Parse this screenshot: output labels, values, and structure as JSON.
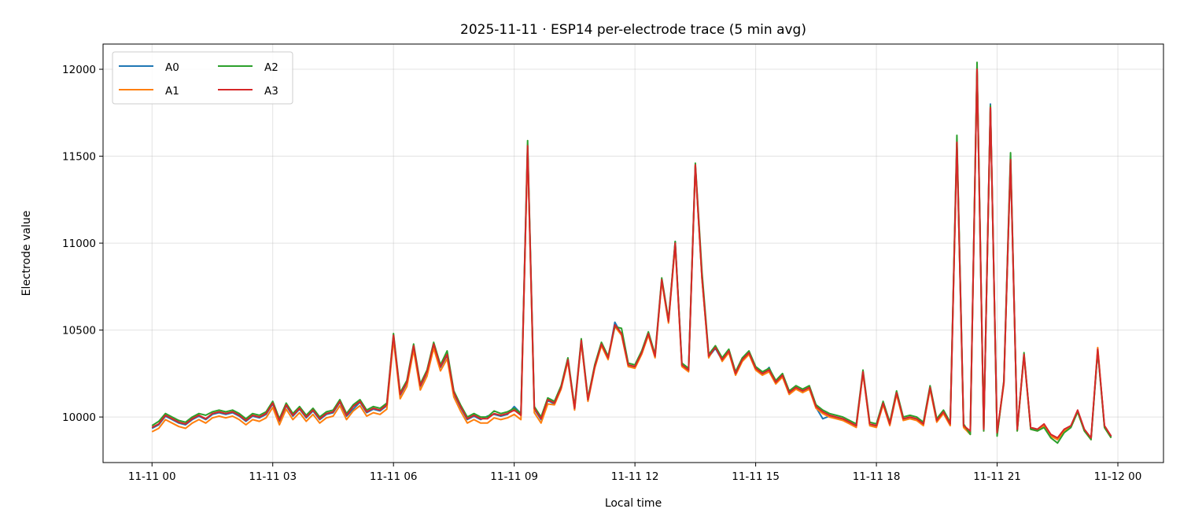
{
  "chart_data": {
    "type": "line",
    "title": "2025-11-11 · ESP14 per-electrode trace (5 min avg)",
    "xlabel": "Local time",
    "ylabel": "Electrode value",
    "date": "2025-11-11",
    "xlim": [
      "2025-11-10 22:47",
      "2025-11-12 01:08"
    ],
    "ylim": [
      9738,
      12145
    ],
    "grid": true,
    "legend_position": "top-left",
    "legend_columns": 2,
    "x_ticks": [
      {
        "label": "11-11 00",
        "hour": 0
      },
      {
        "label": "11-11 03",
        "hour": 3
      },
      {
        "label": "11-11 06",
        "hour": 6
      },
      {
        "label": "11-11 09",
        "hour": 9
      },
      {
        "label": "11-11 12",
        "hour": 12
      },
      {
        "label": "11-11 15",
        "hour": 15
      },
      {
        "label": "11-11 18",
        "hour": 18
      },
      {
        "label": "11-11 21",
        "hour": 21
      },
      {
        "label": "11-12 00",
        "hour": 24
      }
    ],
    "y_ticks": [
      10000,
      10500,
      11000,
      11500,
      12000
    ],
    "x": [
      "00:00",
      "00:10",
      "00:20",
      "00:30",
      "00:40",
      "00:50",
      "01:00",
      "01:10",
      "01:20",
      "01:30",
      "01:40",
      "01:50",
      "02:00",
      "02:10",
      "02:20",
      "02:30",
      "02:40",
      "02:50",
      "03:00",
      "03:10",
      "03:20",
      "03:30",
      "03:40",
      "03:50",
      "04:00",
      "04:10",
      "04:20",
      "04:30",
      "04:40",
      "04:50",
      "05:00",
      "05:10",
      "05:20",
      "05:30",
      "05:40",
      "05:50",
      "06:00",
      "06:10",
      "06:20",
      "06:30",
      "06:40",
      "06:50",
      "07:00",
      "07:10",
      "07:20",
      "07:30",
      "07:40",
      "07:50",
      "08:00",
      "08:10",
      "08:20",
      "08:30",
      "08:40",
      "08:50",
      "09:00",
      "09:10",
      "09:20",
      "09:30",
      "09:40",
      "09:50",
      "10:00",
      "10:10",
      "10:20",
      "10:30",
      "10:40",
      "10:50",
      "11:00",
      "11:10",
      "11:20",
      "11:30",
      "11:40",
      "11:50",
      "12:00",
      "12:10",
      "12:20",
      "12:30",
      "12:40",
      "12:50",
      "13:00",
      "13:10",
      "13:20",
      "13:30",
      "13:40",
      "13:50",
      "14:00",
      "14:10",
      "14:20",
      "14:30",
      "14:40",
      "14:50",
      "15:00",
      "15:10",
      "15:20",
      "15:30",
      "15:40",
      "15:50",
      "16:00",
      "16:10",
      "16:20",
      "16:30",
      "16:40",
      "16:50",
      "17:00",
      "17:10",
      "17:20",
      "17:30",
      "17:40",
      "17:50",
      "18:00",
      "18:10",
      "18:20",
      "18:30",
      "18:40",
      "18:50",
      "19:00",
      "19:10",
      "19:20",
      "19:30",
      "19:40",
      "19:50",
      "20:00",
      "20:10",
      "20:20",
      "20:30",
      "20:40",
      "20:50",
      "21:00",
      "21:10",
      "21:20",
      "21:30",
      "21:40",
      "21:50",
      "22:00",
      "22:10",
      "22:20",
      "22:30",
      "22:40",
      "22:50",
      "23:00",
      "23:10",
      "23:20",
      "23:30",
      "23:40",
      "23:50"
    ],
    "series": [
      {
        "name": "A0",
        "color": "#1f77b4",
        "values": [
          9935,
          9955,
          10005,
          9985,
          9965,
          9955,
          9985,
          10005,
          9985,
          10015,
          10025,
          10015,
          10025,
          10005,
          9975,
          10005,
          9995,
          10015,
          10075,
          9975,
          10065,
          10005,
          10045,
          9995,
          10035,
          9985,
          10015,
          10025,
          10085,
          10005,
          10045,
          10085,
          10025,
          10045,
          10035,
          10065,
          10465,
          10125,
          10195,
          10405,
          10175,
          10255,
          10415,
          10285,
          10355,
          10135,
          10055,
          9985,
          10005,
          9985,
          10005,
          10015,
          10005,
          10015,
          10060,
          10020,
          11555,
          10045,
          9985,
          10095,
          10075,
          10165,
          10325,
          10045,
          10435,
          10095,
          10285,
          10415,
          10335,
          10545,
          10475,
          10295,
          10285,
          10365,
          10475,
          10345,
          10785,
          10545,
          11010,
          10295,
          10265,
          11445,
          10795,
          10345,
          10395,
          10325,
          10375,
          10245,
          10325,
          10365,
          10275,
          10245,
          10285,
          10195,
          10235,
          10135,
          10165,
          10145,
          10165,
          10055,
          9990,
          10005,
          9995,
          9985,
          9965,
          9945,
          10255,
          9955,
          9945,
          10075,
          9955,
          10135,
          9985,
          9995,
          9985,
          9955,
          10165,
          9975,
          10025,
          9955,
          11575,
          9945,
          9915,
          11995,
          9925,
          11800,
          9905,
          10195,
          11475,
          9925,
          10355,
          9935,
          9925,
          9955,
          9895,
          9870,
          9920,
          9945,
          10035,
          9925,
          9875,
          10385,
          9945,
          9885
        ]
      },
      {
        "name": "A1",
        "color": "#ff7f0e",
        "values": [
          9915,
          9935,
          9985,
          9965,
          9945,
          9935,
          9965,
          9985,
          9965,
          9995,
          10005,
          9995,
          10005,
          9985,
          9955,
          9985,
          9975,
          9995,
          10055,
          9955,
          10045,
          9985,
          10025,
          9975,
          10015,
          9965,
          9995,
          10005,
          10065,
          9985,
          10035,
          10065,
          10005,
          10025,
          10015,
          10045,
          10445,
          10105,
          10175,
          10385,
          10155,
          10235,
          10395,
          10265,
          10335,
          10115,
          10035,
          9965,
          9985,
          9965,
          9965,
          9995,
          9985,
          9995,
          10015,
          9985,
          11540,
          10025,
          9965,
          10075,
          10070,
          10160,
          10320,
          10040,
          10430,
          10090,
          10280,
          10410,
          10330,
          10520,
          10470,
          10290,
          10280,
          10360,
          10470,
          10340,
          10780,
          10540,
          10990,
          10290,
          10260,
          11440,
          10790,
          10340,
          10410,
          10320,
          10370,
          10240,
          10320,
          10360,
          10270,
          10240,
          10260,
          10190,
          10230,
          10130,
          10160,
          10140,
          10160,
          10050,
          10020,
          10000,
          9990,
          9980,
          9960,
          9940,
          10250,
          9950,
          9940,
          10070,
          9950,
          10130,
          9980,
          9990,
          9980,
          9950,
          10160,
          9970,
          10020,
          9950,
          11570,
          9940,
          9900,
          12000,
          9920,
          11790,
          9900,
          10190,
          11480,
          9920,
          10350,
          9930,
          9920,
          9950,
          9890,
          9870,
          9920,
          9940,
          10030,
          9920,
          9870,
          10400,
          9940,
          9880
        ]
      },
      {
        "name": "A2",
        "color": "#2ca02c",
        "values": [
          9950,
          9975,
          10020,
          10000,
          9980,
          9970,
          10000,
          10020,
          10010,
          10030,
          10040,
          10030,
          10040,
          10020,
          9990,
          10020,
          10010,
          10030,
          10090,
          9990,
          10080,
          10020,
          10060,
          10010,
          10050,
          10000,
          10030,
          10040,
          10100,
          10020,
          10070,
          10100,
          10040,
          10060,
          10050,
          10080,
          10480,
          10140,
          10210,
          10420,
          10190,
          10270,
          10430,
          10300,
          10380,
          10150,
          10070,
          10000,
          10020,
          10000,
          10000,
          10035,
          10020,
          10030,
          10050,
          10020,
          11590,
          10060,
          10000,
          10110,
          10090,
          10180,
          10340,
          10060,
          10450,
          10110,
          10300,
          10430,
          10350,
          10520,
          10510,
          10310,
          10300,
          10380,
          10490,
          10360,
          10800,
          10560,
          11010,
          10310,
          10280,
          11460,
          10830,
          10360,
          10410,
          10340,
          10390,
          10260,
          10340,
          10380,
          10290,
          10260,
          10280,
          10210,
          10250,
          10150,
          10180,
          10160,
          10180,
          10070,
          10040,
          10020,
          10010,
          10000,
          9980,
          9960,
          10270,
          9970,
          9960,
          10090,
          9970,
          10150,
          10000,
          10010,
          10000,
          9970,
          10180,
          9990,
          10040,
          9970,
          11620,
          9960,
          9900,
          12040,
          9920,
          11790,
          9890,
          10210,
          11520,
          9920,
          10370,
          9930,
          9920,
          9940,
          9880,
          9850,
          9910,
          9940,
          10030,
          9920,
          9870,
          10380,
          9940,
          9880
        ]
      },
      {
        "name": "A3",
        "color": "#d62728",
        "values": [
          9940,
          9960,
          10010,
          9990,
          9970,
          9960,
          9990,
          10010,
          9990,
          10020,
          10030,
          10020,
          10030,
          10010,
          9980,
          10010,
          10000,
          10020,
          10080,
          9980,
          10070,
          10010,
          10050,
          10000,
          10040,
          9990,
          10020,
          10030,
          10090,
          10010,
          10060,
          10090,
          10030,
          10050,
          10040,
          10070,
          10470,
          10130,
          10200,
          10410,
          10180,
          10260,
          10420,
          10290,
          10360,
          10140,
          10060,
          9990,
          10010,
          9990,
          9990,
          10020,
          10010,
          10020,
          10040,
          10010,
          11560,
          10050,
          9990,
          10100,
          10080,
          10170,
          10330,
          10050,
          10440,
          10100,
          10290,
          10420,
          10340,
          10530,
          10480,
          10300,
          10290,
          10370,
          10480,
          10350,
          10790,
          10550,
          11000,
          10300,
          10270,
          11450,
          10800,
          10350,
          10400,
          10330,
          10380,
          10250,
          10330,
          10370,
          10280,
          10250,
          10270,
          10200,
          10240,
          10140,
          10170,
          10150,
          10170,
          10060,
          10030,
          10010,
          10000,
          9990,
          9970,
          9950,
          10260,
          9960,
          9950,
          10080,
          9960,
          10140,
          9990,
          10000,
          9990,
          9960,
          10170,
          9980,
          10030,
          9960,
          11580,
          9950,
          9920,
          12000,
          9930,
          11780,
          9910,
          10200,
          11480,
          9930,
          10360,
          9940,
          9930,
          9960,
          9900,
          9880,
          9930,
          9950,
          10040,
          9930,
          9880,
          10390,
          9950,
          9890
        ]
      }
    ]
  }
}
